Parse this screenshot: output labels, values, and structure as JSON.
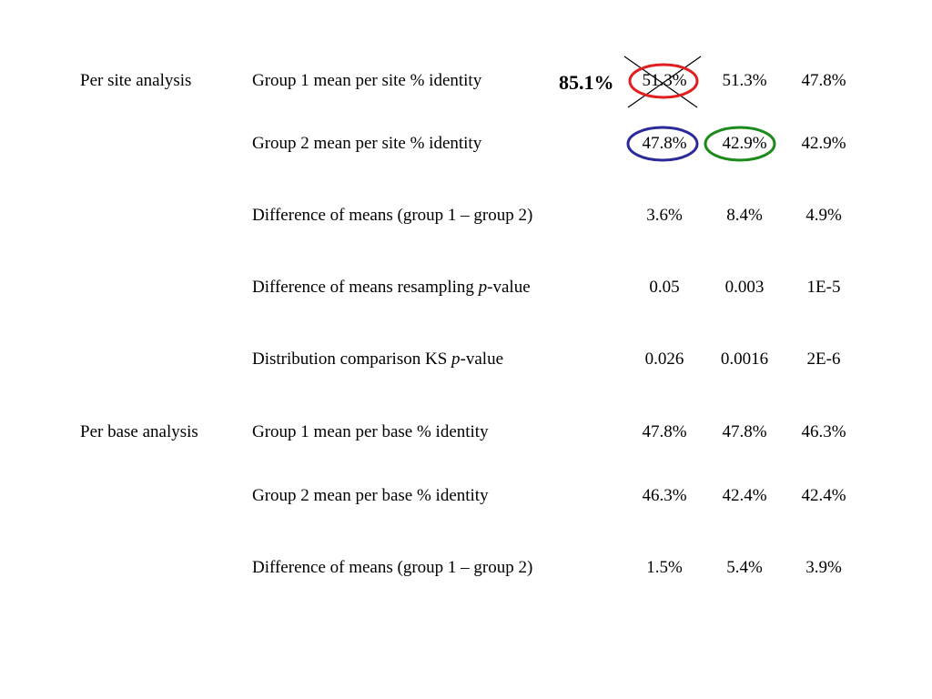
{
  "sections": [
    {
      "label": "Per site analysis"
    },
    {
      "label": "Per base analysis"
    }
  ],
  "rows": [
    {
      "label": "Group 1 mean per site % identity",
      "v1": "51.3%",
      "v2": "51.3%",
      "v3": "47.8%"
    },
    {
      "label": "Group 2 mean per site % identity",
      "v1": "47.8%",
      "v2": "42.9%",
      "v3": "42.9%"
    },
    {
      "label": "Difference of means (group 1 – group 2)",
      "v1": "3.6%",
      "v2": "8.4%",
      "v3": "4.9%"
    },
    {
      "label_pre": "Difference of means resampling ",
      "label_italic": "p",
      "label_post": "-value",
      "v1": "0.05",
      "v2": "0.003",
      "v3": "1E-5"
    },
    {
      "label_pre": "Distribution comparison KS ",
      "label_italic": "p",
      "label_post": "-value",
      "v1": "0.026",
      "v2": "0.0016",
      "v3": "2E-6"
    },
    {
      "label": "Group 1 mean per base % identity",
      "v1": "47.8%",
      "v2": "47.8%",
      "v3": "46.3%"
    },
    {
      "label": "Group 2 mean per base % identity",
      "v1": "46.3%",
      "v2": "42.4%",
      "v3": "42.4%"
    },
    {
      "label": "Difference of means (group 1 – group 2)",
      "v1": "1.5%",
      "v2": "5.4%",
      "v3": "3.9%"
    }
  ],
  "correction": {
    "value": "85.1%"
  },
  "annotation_colors": {
    "red": "#e02020",
    "blue": "#2a2a9a",
    "green": "#1a8a1a",
    "cross": "#000000"
  }
}
